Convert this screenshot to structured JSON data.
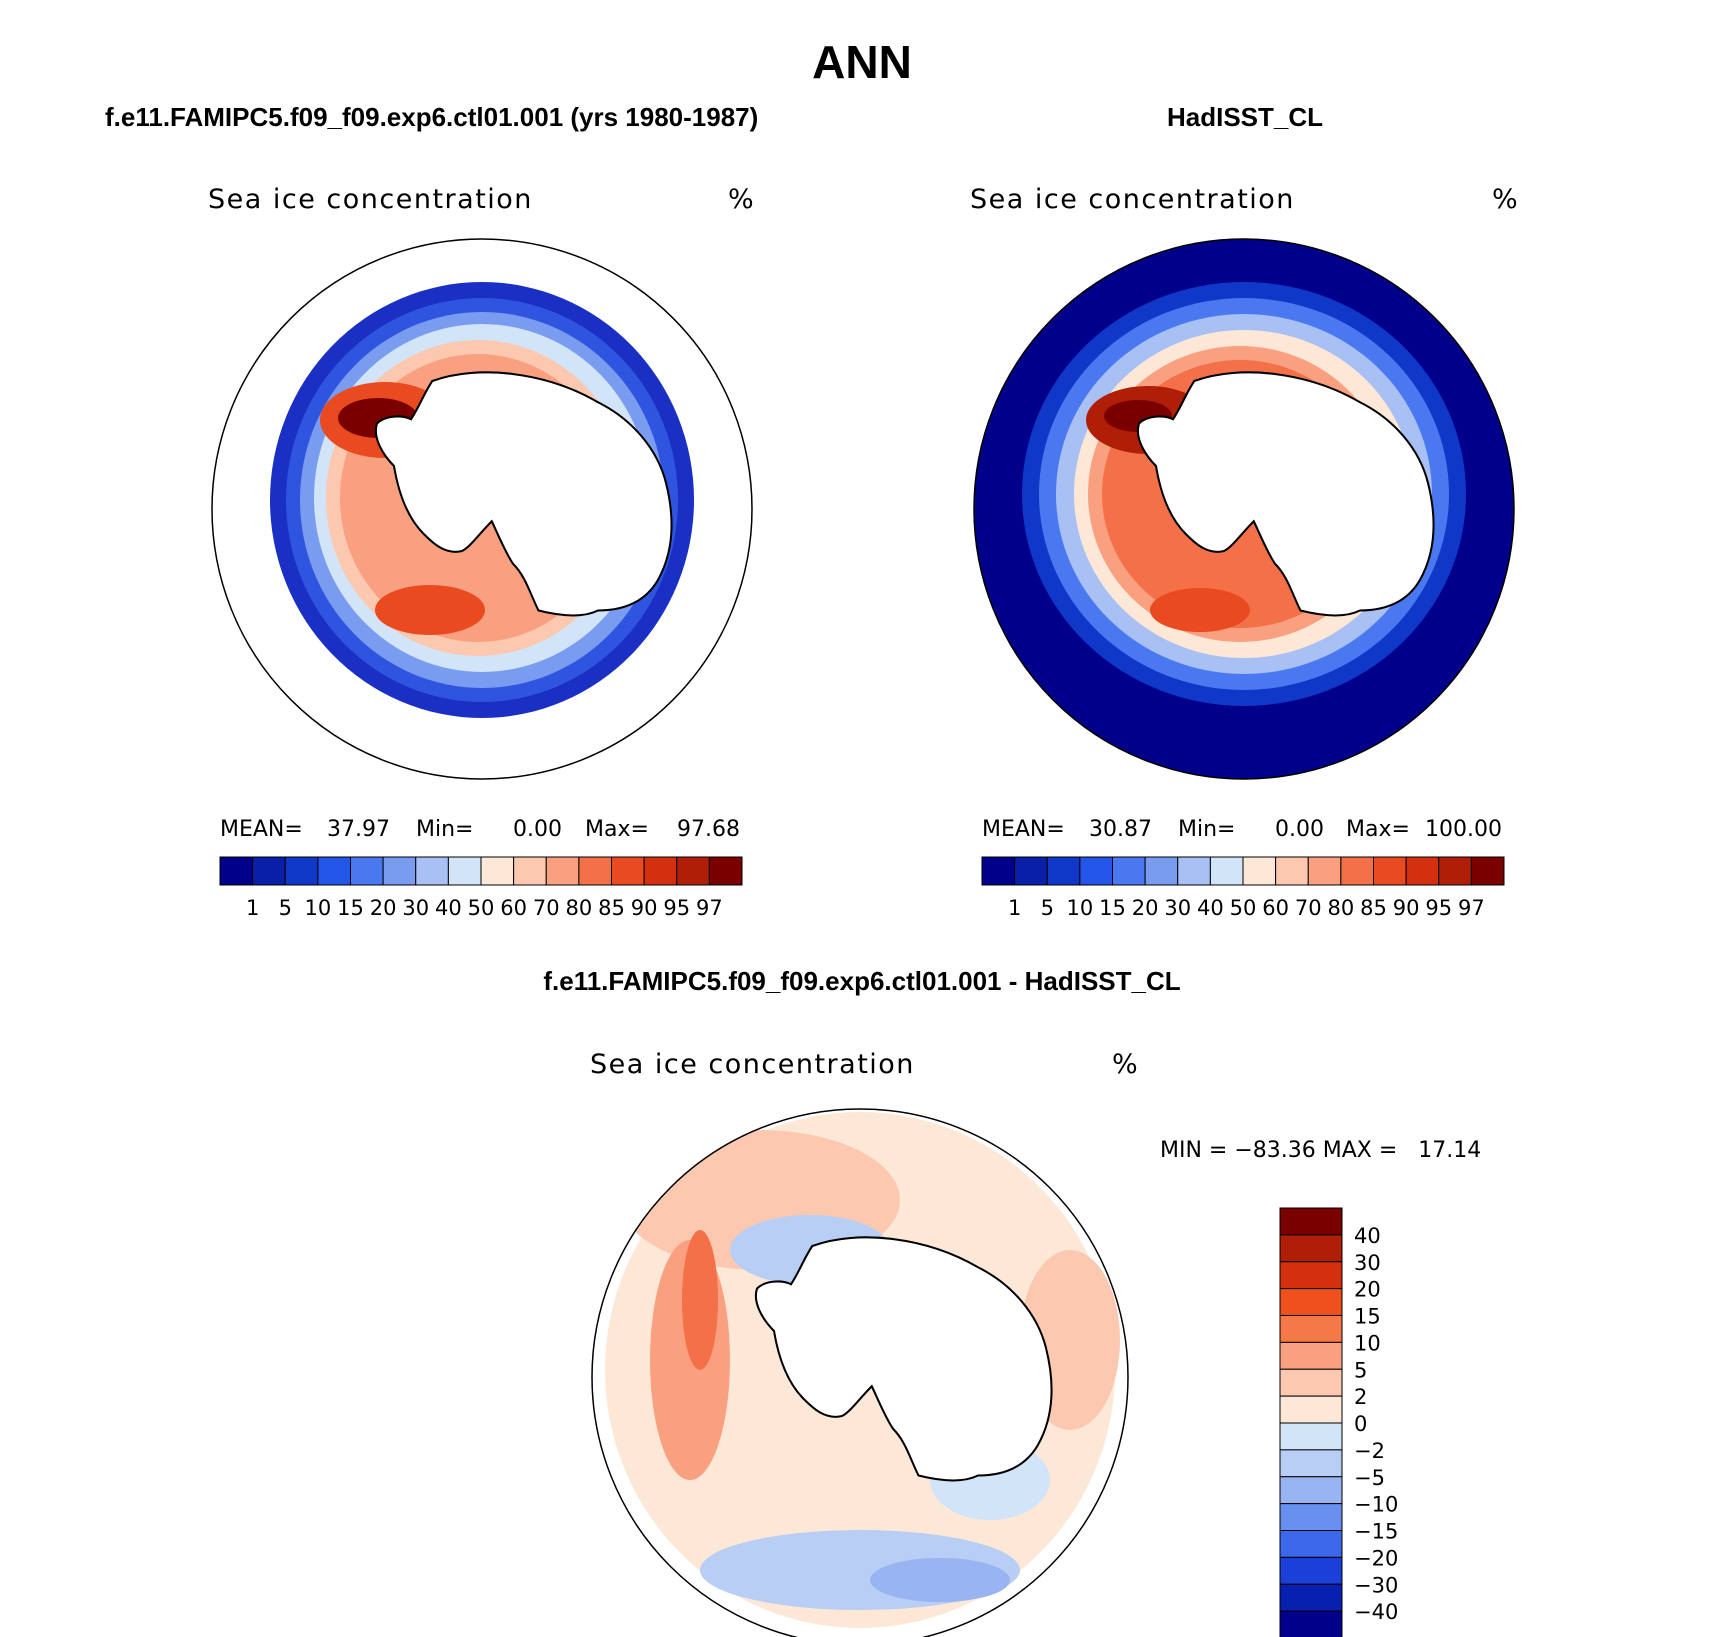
{
  "title": "ANN",
  "panels": {
    "model": {
      "case_title": "f.e11.FAMIPC5.f09_f09.exp6.ctl01.001 (yrs 1980-1987)",
      "variable": "Sea ice concentration",
      "units": "%",
      "stats": {
        "mean_label": "MEAN=",
        "mean": "37.97",
        "min_label": "Min=",
        "min": "0.00",
        "max_label": "Max=",
        "max": "97.68"
      }
    },
    "obs": {
      "case_title": "HadISST_CL",
      "variable": "Sea ice concentration",
      "units": "%",
      "stats": {
        "mean_label": "MEAN=",
        "mean": "30.87",
        "min_label": "Min=",
        "min": "0.00",
        "max_label": "Max=",
        "max": "100.00"
      }
    },
    "diff": {
      "case_title": "f.e11.FAMIPC5.f09_f09.exp6.ctl01.001 - HadISST_CL",
      "variable": "Sea ice concentration",
      "units": "%",
      "range_text": "MIN = −83.36 MAX =   17.14"
    }
  },
  "colorbar_abs": {
    "labels": [
      "1",
      "5",
      "10",
      "15",
      "20",
      "30",
      "40",
      "50",
      "60",
      "70",
      "80",
      "85",
      "90",
      "95",
      "97"
    ],
    "colors": [
      "#00008b",
      "#0a1fa8",
      "#1038c8",
      "#2255e8",
      "#4a78f0",
      "#7a9cf0",
      "#a8c0f4",
      "#d2e4f8",
      "#fde8d8",
      "#fcc8b0",
      "#f9a080",
      "#f47048",
      "#ea4a20",
      "#d43010",
      "#b01e08",
      "#7a0000"
    ]
  },
  "colorbar_diff": {
    "labels": [
      "40",
      "30",
      "20",
      "15",
      "10",
      "5",
      "2",
      "0",
      "−2",
      "−5",
      "−10",
      "−15",
      "−20",
      "−30",
      "−40"
    ],
    "colors": [
      "#7a0000",
      "#b01e08",
      "#d43010",
      "#f0501e",
      "#f47848",
      "#f9a080",
      "#fcc8b0",
      "#fde8d8",
      "#d2e4f8",
      "#b8cef4",
      "#98b4f2",
      "#6890f0",
      "#3c68ec",
      "#1a40d8",
      "#0820b0",
      "#00008b"
    ]
  },
  "chart_data": {
    "type": "heatmap",
    "title": "ANN",
    "maps": [
      {
        "name": "f.e11.FAMIPC5.f09_f09.exp6.ctl01.001 (yrs 1980-1987)",
        "variable": "Sea ice concentration",
        "units": "%",
        "mean": 37.97,
        "min": 0.0,
        "max": 97.68,
        "contour_levels": [
          1,
          5,
          10,
          15,
          20,
          30,
          40,
          50,
          60,
          70,
          80,
          85,
          90,
          95,
          97
        ]
      },
      {
        "name": "HadISST_CL",
        "variable": "Sea ice concentration",
        "units": "%",
        "mean": 30.87,
        "min": 0.0,
        "max": 100.0,
        "contour_levels": [
          1,
          5,
          10,
          15,
          20,
          30,
          40,
          50,
          60,
          70,
          80,
          85,
          90,
          95,
          97
        ]
      },
      {
        "name": "f.e11.FAMIPC5.f09_f09.exp6.ctl01.001 - HadISST_CL",
        "variable": "Sea ice concentration",
        "units": "%",
        "min": -83.36,
        "max": 17.14,
        "contour_levels": [
          -40,
          -30,
          -20,
          -15,
          -10,
          -5,
          -2,
          0,
          2,
          5,
          10,
          15,
          20,
          30,
          40
        ]
      }
    ]
  }
}
